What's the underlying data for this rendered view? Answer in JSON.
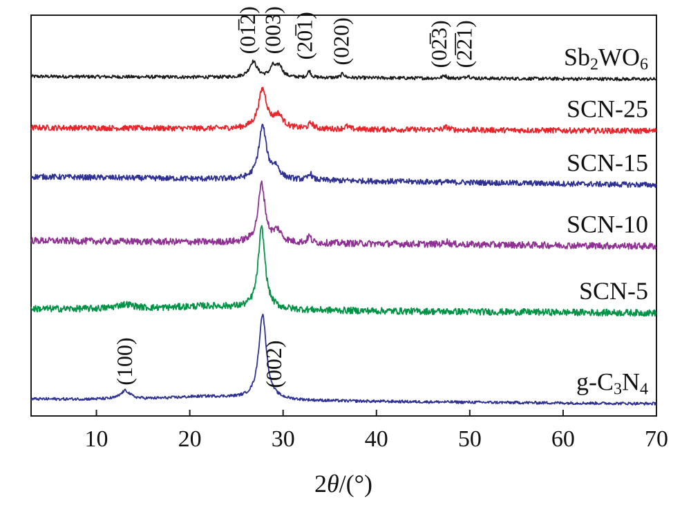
{
  "chart_data": {
    "type": "line",
    "xlabel": {
      "prefix": "2",
      "theta": "θ",
      "suffix": "/(°)"
    },
    "xlim": [
      3,
      70
    ],
    "ylim": [
      0,
      7.2
    ],
    "xticks": [
      10,
      20,
      30,
      40,
      50,
      60,
      70
    ],
    "yticks": [],
    "grid": false,
    "legend": "none",
    "series": [
      {
        "name": "Sb2WO6",
        "label_parts": [
          {
            "t": "Sb",
            "sub": false
          },
          {
            "t": "2",
            "sub": true
          },
          {
            "t": "WO",
            "sub": false
          },
          {
            "t": "6",
            "sub": true
          }
        ],
        "color": "#1a1a1a",
        "baseline": 6.1,
        "baseline_end": 6.05,
        "noise": 0.03,
        "peaks": [
          [
            26.8,
            0.28,
            0.5
          ],
          [
            28.9,
            0.18,
            0.35
          ],
          [
            29.6,
            0.2,
            0.4
          ],
          [
            32.8,
            0.12,
            0.2
          ],
          [
            36.4,
            0.08,
            0.2
          ],
          [
            47.3,
            0.05,
            0.25
          ],
          [
            49.8,
            0.05,
            0.25
          ]
        ]
      },
      {
        "name": "SCN-25",
        "label_parts": [
          {
            "t": "SCN-25",
            "sub": false
          }
        ],
        "color": "#e8232a",
        "baseline": 5.18,
        "baseline_end": 5.12,
        "noise": 0.05,
        "peaks": [
          [
            27.8,
            0.7,
            0.55
          ],
          [
            29.5,
            0.22,
            0.6
          ],
          [
            33.0,
            0.1,
            0.3
          ],
          [
            36.8,
            0.05,
            0.3
          ],
          [
            47.5,
            0.05,
            0.3
          ]
        ]
      },
      {
        "name": "SCN-15",
        "label_parts": [
          {
            "t": "SCN-15",
            "sub": false
          }
        ],
        "color": "#2e3192",
        "baseline": 4.3,
        "baseline_end": 4.15,
        "noise": 0.05,
        "peaks": [
          [
            27.8,
            0.95,
            0.5
          ],
          [
            29.2,
            0.2,
            0.5
          ],
          [
            32.9,
            0.12,
            0.22
          ]
        ]
      },
      {
        "name": "SCN-10",
        "label_parts": [
          {
            "t": "SCN-10",
            "sub": false
          }
        ],
        "color": "#8e3192",
        "baseline": 3.15,
        "baseline_end": 3.05,
        "noise": 0.06,
        "peaks": [
          [
            27.7,
            1.05,
            0.45
          ],
          [
            29.4,
            0.2,
            0.5
          ],
          [
            32.8,
            0.12,
            0.22
          ],
          [
            47.5,
            0.06,
            0.2
          ]
        ]
      },
      {
        "name": "SCN-5",
        "label_parts": [
          {
            "t": "SCN-5",
            "sub": false
          }
        ],
        "color": "#009245",
        "baseline": 1.92,
        "baseline_end": 1.85,
        "noise": 0.06,
        "peaks": [
          [
            27.7,
            1.45,
            0.45
          ],
          [
            13.1,
            0.08,
            1.2
          ],
          [
            22.0,
            0.07,
            5.0
          ]
        ]
      },
      {
        "name": "g-C3N4",
        "label_parts": [
          {
            "t": "g-C",
            "sub": false
          },
          {
            "t": "3",
            "sub": true
          },
          {
            "t": "N",
            "sub": false
          },
          {
            "t": "4",
            "sub": true
          }
        ],
        "color": "#2e3192",
        "baseline": 0.3,
        "baseline_end": 0.22,
        "noise": 0.025,
        "peaks": [
          [
            27.8,
            1.52,
            0.5
          ],
          [
            13.1,
            0.15,
            0.6
          ],
          [
            22.0,
            0.07,
            5.0
          ]
        ]
      }
    ],
    "peak_labels": [
      {
        "text": "(01̅2)",
        "x": 27.0,
        "y": 6.5
      },
      {
        "text": "(003)",
        "x": 29.7,
        "y": 6.5
      },
      {
        "text": "(20̅1)",
        "x": 33.1,
        "y": 6.4
      },
      {
        "text": "(020)",
        "x": 37.0,
        "y": 6.3
      },
      {
        "text": "(02̅3)",
        "x": 47.5,
        "y": 6.25
      },
      {
        "text": "(2̅2̅1)",
        "x": 50.2,
        "y": 6.25
      },
      {
        "text": "(100)",
        "x": 13.8,
        "y": 0.55
      },
      {
        "text": "(002)",
        "x": 29.8,
        "y": 0.5
      }
    ]
  }
}
